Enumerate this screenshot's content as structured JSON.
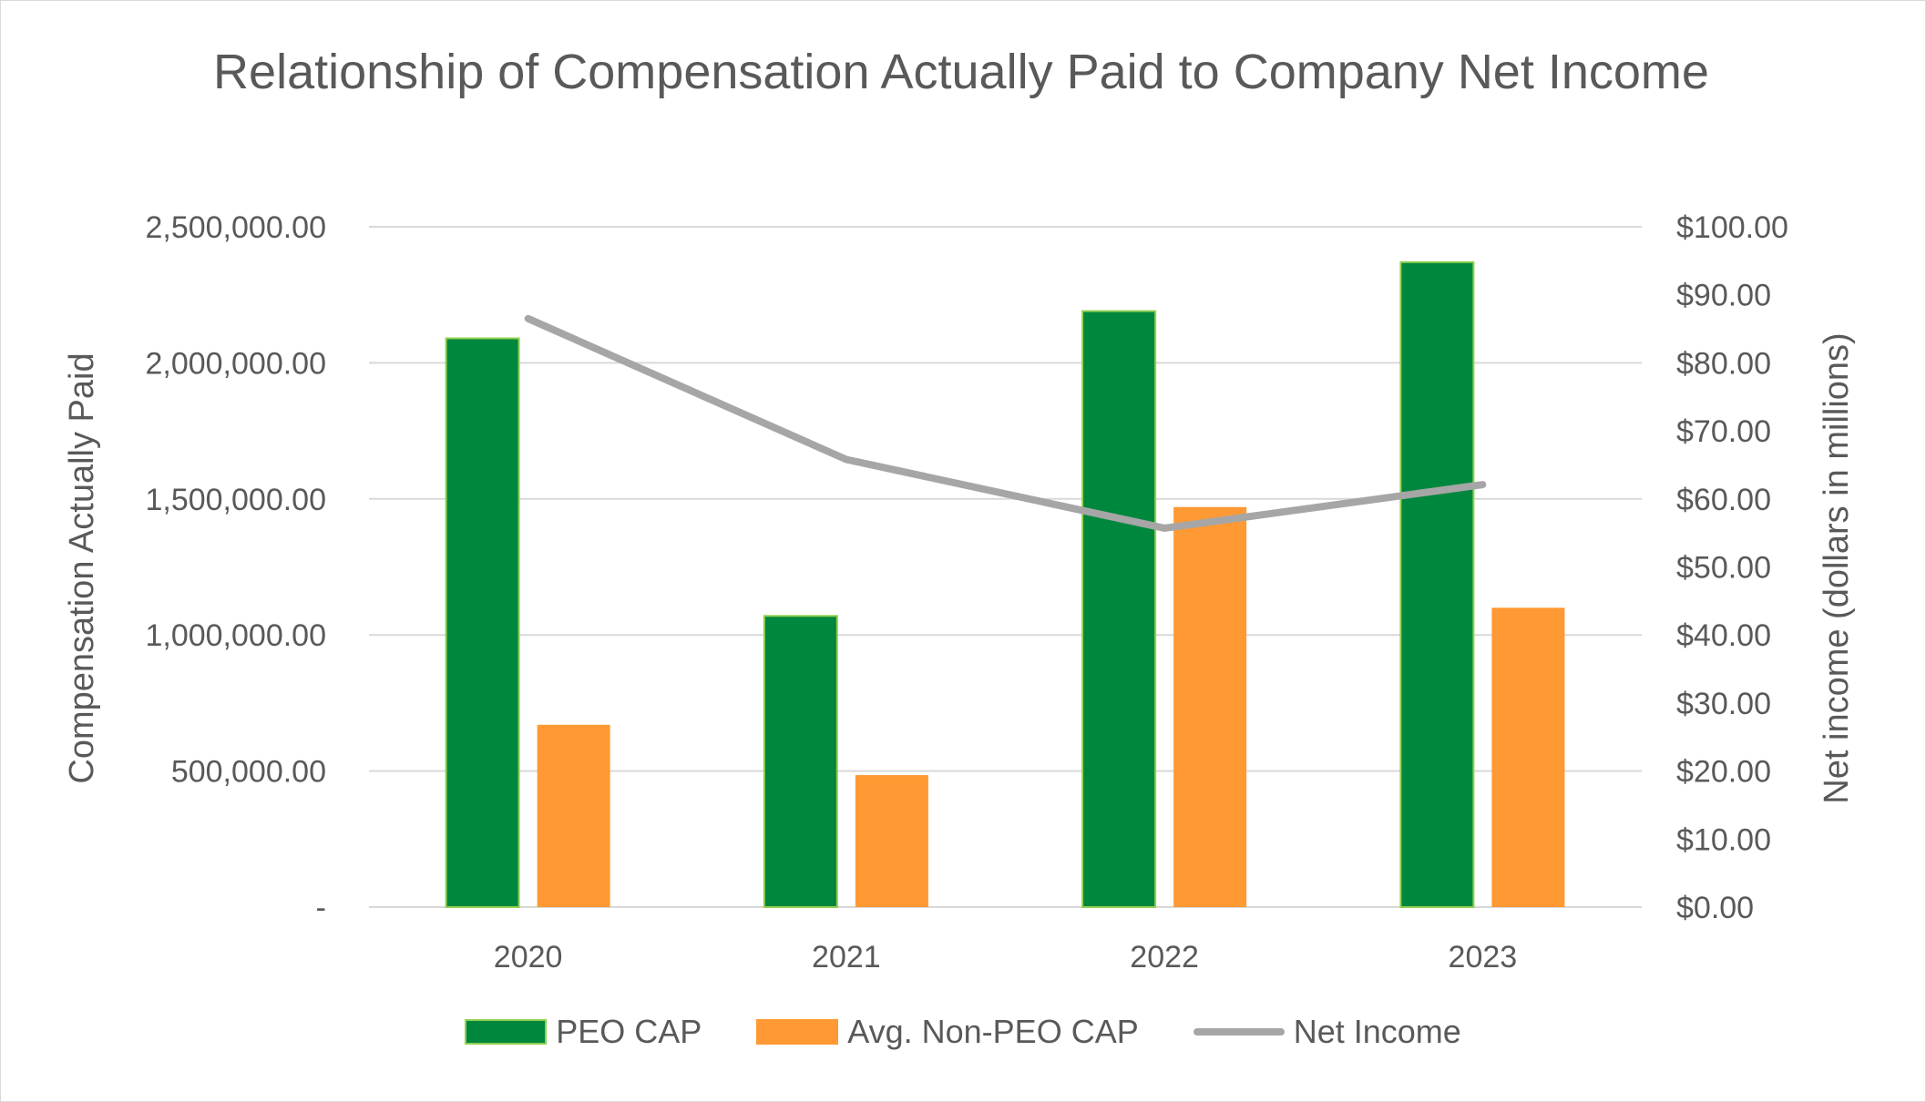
{
  "chart_data": {
    "type": "bar",
    "title": "Relationship of Compensation Actually Paid to Company Net Income",
    "categories": [
      "2020",
      "2021",
      "2022",
      "2023"
    ],
    "series": [
      {
        "name": "PEO CAP",
        "type": "bar",
        "axis": "left",
        "color": "#00873e",
        "values": [
          2090000,
          1070000,
          2190000,
          2370000
        ]
      },
      {
        "name": "Avg. Non-PEO CAP",
        "type": "bar",
        "axis": "left",
        "color": "#ff9933",
        "values": [
          670000,
          485000,
          1470000,
          1100000
        ]
      },
      {
        "name": "Net Income",
        "type": "line",
        "axis": "right",
        "color": "#a6a6a6",
        "values": [
          86.5,
          65.8,
          55.7,
          62.1
        ]
      }
    ],
    "ylabel": "Compensation Actually Paid",
    "ylim": [
      0,
      2500000
    ],
    "yticks": [
      {
        "value": 0,
        "label": "-"
      },
      {
        "value": 500000,
        "label": "500,000.00"
      },
      {
        "value": 1000000,
        "label": "1,000,000.00"
      },
      {
        "value": 1500000,
        "label": "1,500,000.00"
      },
      {
        "value": 2000000,
        "label": "2,000,000.00"
      },
      {
        "value": 2500000,
        "label": "2,500,000.00"
      }
    ],
    "y2label": "Net income (dollars in millions)",
    "y2lim": [
      0,
      100
    ],
    "y2ticks": [
      {
        "value": 0,
        "label": "$0.00"
      },
      {
        "value": 10,
        "label": "$10.00"
      },
      {
        "value": 20,
        "label": "$20.00"
      },
      {
        "value": 30,
        "label": "$30.00"
      },
      {
        "value": 40,
        "label": "$40.00"
      },
      {
        "value": 50,
        "label": "$50.00"
      },
      {
        "value": 60,
        "label": "$60.00"
      },
      {
        "value": 70,
        "label": "$70.00"
      },
      {
        "value": 80,
        "label": "$80.00"
      },
      {
        "value": 90,
        "label": "$90.00"
      },
      {
        "value": 100,
        "label": "$100.00"
      }
    ],
    "grid": true,
    "legend_position": "bottom",
    "bar_outline_color": "#92d050",
    "grid_color": "#d9d9d9",
    "text_color": "#595959"
  }
}
